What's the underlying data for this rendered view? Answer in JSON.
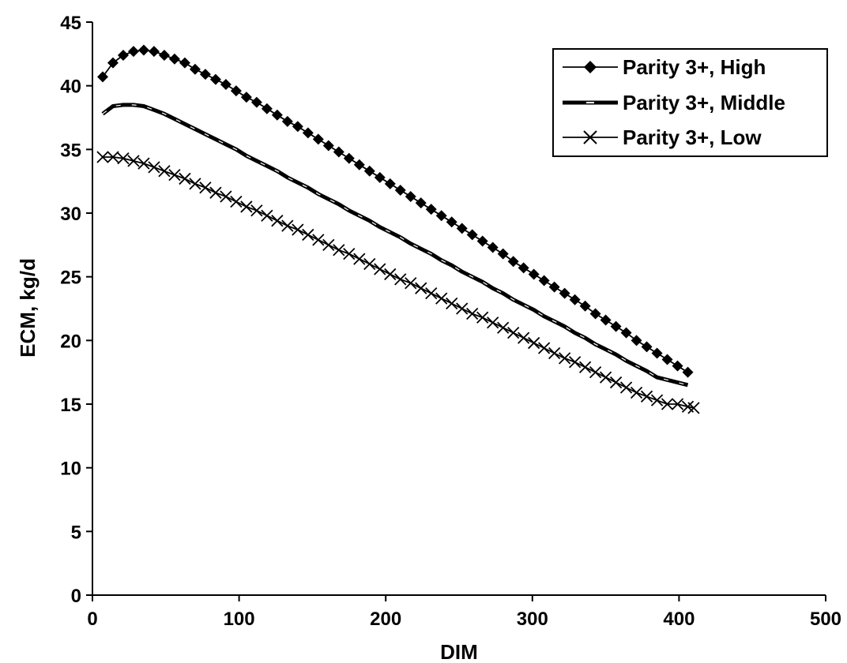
{
  "chart_data": {
    "type": "line",
    "xlabel": "DIM",
    "ylabel": "ECM, kg/d",
    "xlim": [
      0,
      500
    ],
    "ylim": [
      0,
      45
    ],
    "x_ticks": [
      "0",
      "100",
      "200",
      "300",
      "400",
      "500"
    ],
    "y_ticks": [
      "0",
      "5",
      "10",
      "15",
      "20",
      "25",
      "30",
      "35",
      "40",
      "45"
    ],
    "grid": false,
    "legend_position": "top-right",
    "series": [
      {
        "name": "Parity 3+, High",
        "marker": "diamond",
        "line": "thin",
        "x": [
          7,
          14,
          21,
          28,
          35,
          42,
          49,
          56,
          63,
          70,
          77,
          84,
          91,
          98,
          105,
          112,
          119,
          126,
          133,
          140,
          147,
          154,
          161,
          168,
          175,
          182,
          189,
          196,
          203,
          210,
          217,
          224,
          231,
          238,
          245,
          252,
          259,
          266,
          273,
          280,
          287,
          294,
          301,
          308,
          315,
          322,
          329,
          336,
          343,
          350,
          357,
          364,
          371,
          378,
          385,
          392,
          399,
          406
        ],
        "y": [
          40.7,
          41.8,
          42.4,
          42.7,
          42.8,
          42.7,
          42.4,
          42.1,
          41.8,
          41.3,
          40.9,
          40.5,
          40.1,
          39.6,
          39.1,
          38.7,
          38.2,
          37.7,
          37.2,
          36.8,
          36.3,
          35.8,
          35.3,
          34.8,
          34.3,
          33.8,
          33.3,
          32.8,
          32.3,
          31.8,
          31.3,
          30.8,
          30.3,
          29.8,
          29.3,
          28.8,
          28.3,
          27.8,
          27.3,
          26.8,
          26.2,
          25.7,
          25.2,
          24.7,
          24.2,
          23.7,
          23.2,
          22.7,
          22.1,
          21.6,
          21.1,
          20.6,
          20.0,
          19.5,
          19.0,
          18.5,
          18.0,
          17.5
        ]
      },
      {
        "name": "Parity 3+, Middle",
        "marker": "dash",
        "line": "thick",
        "x": [
          7,
          14,
          21,
          28,
          35,
          42,
          49,
          56,
          63,
          70,
          77,
          84,
          91,
          98,
          105,
          112,
          119,
          126,
          133,
          140,
          147,
          154,
          161,
          168,
          175,
          182,
          189,
          196,
          203,
          210,
          217,
          224,
          231,
          238,
          245,
          252,
          259,
          266,
          273,
          280,
          287,
          294,
          301,
          308,
          315,
          322,
          329,
          336,
          343,
          350,
          357,
          364,
          371,
          378,
          385,
          392,
          399,
          406
        ],
        "y": [
          37.8,
          38.4,
          38.5,
          38.5,
          38.4,
          38.1,
          37.8,
          37.4,
          37.0,
          36.6,
          36.2,
          35.8,
          35.4,
          35.0,
          34.5,
          34.1,
          33.7,
          33.3,
          32.8,
          32.4,
          32.0,
          31.5,
          31.1,
          30.7,
          30.2,
          29.8,
          29.4,
          28.9,
          28.5,
          28.1,
          27.6,
          27.2,
          26.8,
          26.3,
          25.9,
          25.4,
          25.0,
          24.6,
          24.1,
          23.7,
          23.2,
          22.8,
          22.4,
          21.9,
          21.5,
          21.1,
          20.6,
          20.2,
          19.7,
          19.3,
          18.9,
          18.4,
          18.0,
          17.6,
          17.1,
          16.9,
          16.7,
          16.5
        ]
      },
      {
        "name": "Parity 3+, Low",
        "marker": "x",
        "line": "thin",
        "x": [
          7,
          14,
          21,
          28,
          35,
          42,
          49,
          56,
          63,
          70,
          77,
          84,
          91,
          98,
          105,
          112,
          119,
          126,
          133,
          140,
          147,
          154,
          161,
          168,
          175,
          182,
          189,
          196,
          203,
          210,
          217,
          224,
          231,
          238,
          245,
          252,
          259,
          266,
          273,
          280,
          287,
          294,
          301,
          308,
          315,
          322,
          329,
          336,
          343,
          350,
          357,
          364,
          371,
          378,
          385,
          392,
          399,
          406,
          410
        ],
        "y": [
          34.4,
          34.4,
          34.3,
          34.1,
          33.9,
          33.6,
          33.3,
          33.0,
          32.7,
          32.3,
          32.0,
          31.6,
          31.3,
          30.9,
          30.5,
          30.2,
          29.8,
          29.4,
          29.0,
          28.7,
          28.3,
          27.9,
          27.5,
          27.1,
          26.8,
          26.4,
          26.0,
          25.6,
          25.2,
          24.8,
          24.5,
          24.1,
          23.7,
          23.3,
          22.9,
          22.5,
          22.1,
          21.8,
          21.4,
          21.0,
          20.6,
          20.2,
          19.8,
          19.4,
          19.0,
          18.6,
          18.3,
          17.9,
          17.5,
          17.1,
          16.7,
          16.3,
          15.9,
          15.6,
          15.3,
          15.0,
          15.0,
          14.8,
          14.7
        ]
      }
    ]
  }
}
